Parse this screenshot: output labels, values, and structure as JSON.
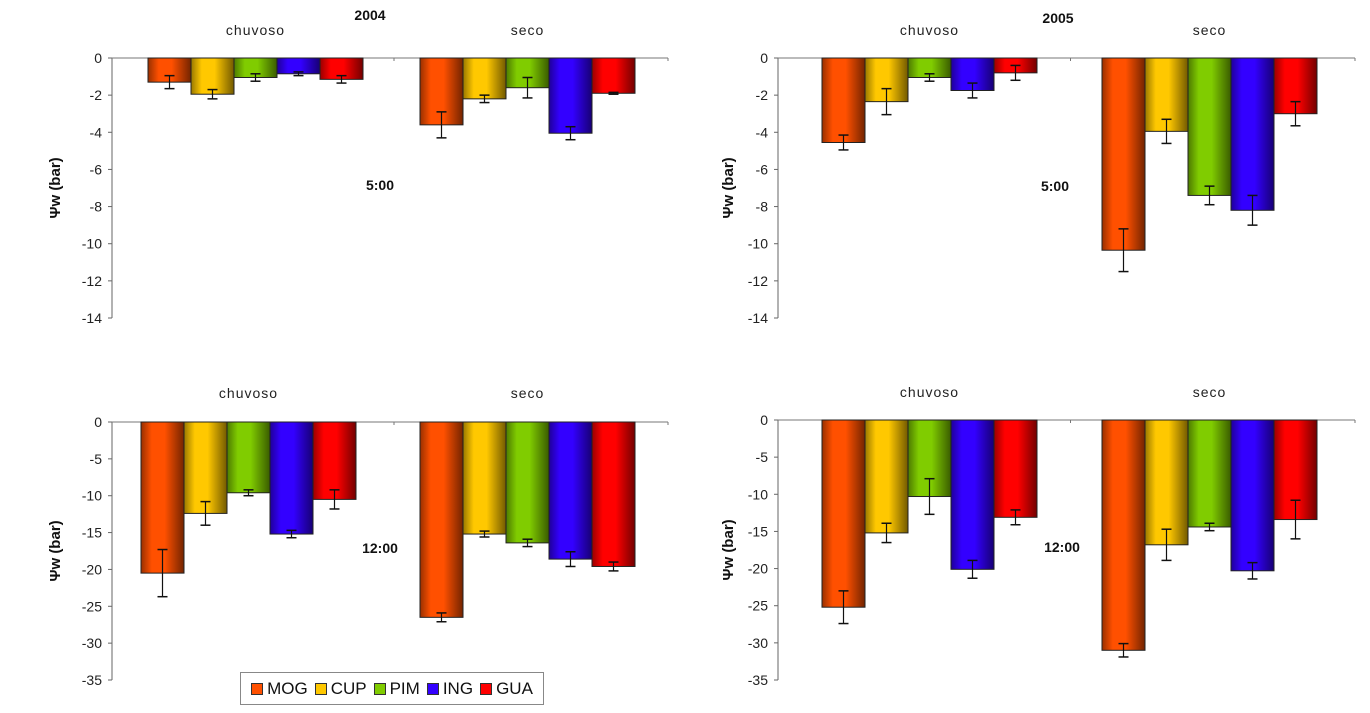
{
  "series_colors": {
    "MOG": "#ff5000",
    "CUP": "#ffc800",
    "PIM": "#80cc00",
    "ING": "#3300ff",
    "GUA": "#ff0000"
  },
  "legend": [
    {
      "label": "MOG",
      "color": "#ff5000"
    },
    {
      "label": "CUP",
      "color": "#ffc800"
    },
    {
      "label": "PIM",
      "color": "#80cc00"
    },
    {
      "label": "ING",
      "color": "#3300ff"
    },
    {
      "label": "GUA",
      "color": "#ff0000"
    }
  ],
  "year_labels": [
    "2004",
    "2005"
  ],
  "chart_data": [
    {
      "type": "bar",
      "year": "2004",
      "time_label": "5:00",
      "ylabel": "Ψw (bar)",
      "ylim": [
        -14,
        0
      ],
      "yticks": [
        "0",
        "-2",
        "-4",
        "-6",
        "-8",
        "-10",
        "-12",
        "-14"
      ],
      "categories": [
        "chuvoso",
        "seco"
      ],
      "series": [
        {
          "name": "MOG",
          "values": [
            -1.3,
            -3.6
          ],
          "errors": [
            0.35,
            0.7
          ]
        },
        {
          "name": "CUP",
          "values": [
            -1.95,
            -2.2
          ],
          "errors": [
            0.25,
            0.2
          ]
        },
        {
          "name": "PIM",
          "values": [
            -1.05,
            -1.6
          ],
          "errors": [
            0.2,
            0.55
          ]
        },
        {
          "name": "ING",
          "values": [
            -0.85,
            -4.05
          ],
          "errors": [
            0.1,
            0.35
          ]
        },
        {
          "name": "GUA",
          "values": [
            -1.15,
            -1.9
          ],
          "errors": [
            0.2,
            0.05
          ]
        }
      ]
    },
    {
      "type": "bar",
      "year": "2005",
      "time_label": "5:00",
      "ylabel": "Ψw (bar)",
      "ylim": [
        -14,
        0
      ],
      "yticks": [
        "0",
        "-2",
        "-4",
        "-6",
        "-8",
        "-10",
        "-12",
        "-14"
      ],
      "categories": [
        "chuvoso",
        "seco"
      ],
      "series": [
        {
          "name": "MOG",
          "values": [
            -4.55,
            -10.35
          ],
          "errors": [
            0.4,
            1.15
          ]
        },
        {
          "name": "CUP",
          "values": [
            -2.35,
            -3.95
          ],
          "errors": [
            0.7,
            0.65
          ]
        },
        {
          "name": "PIM",
          "values": [
            -1.05,
            -7.4
          ],
          "errors": [
            0.2,
            0.5
          ]
        },
        {
          "name": "ING",
          "values": [
            -1.75,
            -8.2
          ],
          "errors": [
            0.4,
            0.8
          ]
        },
        {
          "name": "GUA",
          "values": [
            -0.8,
            -3.0
          ],
          "errors": [
            0.4,
            0.65
          ]
        }
      ]
    },
    {
      "type": "bar",
      "year": "2004",
      "time_label": "12:00",
      "ylabel": "Ψw (bar)",
      "ylim": [
        -35,
        0
      ],
      "yticks": [
        "0",
        "-5",
        "-10",
        "-15",
        "-20",
        "-25",
        "-30",
        "-35"
      ],
      "categories": [
        "chuvoso",
        "seco"
      ],
      "series": [
        {
          "name": "MOG",
          "values": [
            -20.5,
            -26.5
          ],
          "errors": [
            3.2,
            0.6
          ]
        },
        {
          "name": "CUP",
          "values": [
            -12.4,
            -15.2
          ],
          "errors": [
            1.6,
            0.4
          ]
        },
        {
          "name": "PIM",
          "values": [
            -9.6,
            -16.4
          ],
          "errors": [
            0.4,
            0.5
          ]
        },
        {
          "name": "ING",
          "values": [
            -15.2,
            -18.6
          ],
          "errors": [
            0.5,
            1.0
          ]
        },
        {
          "name": "GUA",
          "values": [
            -10.5,
            -19.6
          ],
          "errors": [
            1.3,
            0.6
          ]
        }
      ]
    },
    {
      "type": "bar",
      "year": "2005",
      "time_label": "12:00",
      "ylabel": "Ψw (bar)",
      "ylim": [
        -35,
        0
      ],
      "yticks": [
        "0",
        "-5",
        "-10",
        "-15",
        "-20",
        "-25",
        "-30",
        "-35"
      ],
      "categories": [
        "chuvoso",
        "seco"
      ],
      "series": [
        {
          "name": "MOG",
          "values": [
            -25.2,
            -31.0
          ],
          "errors": [
            2.2,
            0.9
          ]
        },
        {
          "name": "CUP",
          "values": [
            -15.2,
            -16.8
          ],
          "errors": [
            1.3,
            2.1
          ]
        },
        {
          "name": "PIM",
          "values": [
            -10.3,
            -14.4
          ],
          "errors": [
            2.4,
            0.5
          ]
        },
        {
          "name": "ING",
          "values": [
            -20.1,
            -20.3
          ],
          "errors": [
            1.2,
            1.1
          ]
        },
        {
          "name": "GUA",
          "values": [
            -13.1,
            -13.4
          ],
          "errors": [
            1.0,
            2.6
          ]
        }
      ]
    }
  ]
}
